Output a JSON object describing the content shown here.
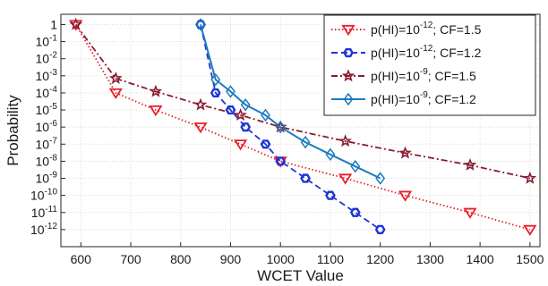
{
  "chart_data": {
    "type": "line",
    "title": "",
    "xlabel": "WCET Value",
    "ylabel": "Probability",
    "xlim": [
      560,
      1520
    ],
    "ylim_exponent": [
      -13,
      0.6
    ],
    "y_scale": "log",
    "x_ticks": [
      600,
      700,
      800,
      900,
      1000,
      1100,
      1200,
      1300,
      1400,
      1500
    ],
    "y_ticks": [
      {
        "exp": 0,
        "text": "1"
      },
      {
        "exp": -1,
        "text": "10",
        "sup": "-1"
      },
      {
        "exp": -2,
        "text": "10",
        "sup": "-2"
      },
      {
        "exp": -3,
        "text": "10",
        "sup": "-3"
      },
      {
        "exp": -4,
        "text": "10",
        "sup": "-4"
      },
      {
        "exp": -5,
        "text": "10",
        "sup": "-5"
      },
      {
        "exp": -6,
        "text": "10",
        "sup": "-6"
      },
      {
        "exp": -7,
        "text": "10",
        "sup": "-7"
      },
      {
        "exp": -8,
        "text": "10",
        "sup": "-8"
      },
      {
        "exp": -9,
        "text": "10",
        "sup": "-9"
      },
      {
        "exp": -10,
        "text": "10",
        "sup": "-10"
      },
      {
        "exp": -11,
        "text": "10",
        "sup": "-11"
      },
      {
        "exp": -12,
        "text": "10",
        "sup": "-12"
      }
    ],
    "grid": true,
    "legend_position": "top-right",
    "series": [
      {
        "name_prefix": "p(HI)=10",
        "name_sup": "-12",
        "name_suffix": "; CF=1.5",
        "color": "#e8202a",
        "dash": "dotted",
        "marker": "triangle-down",
        "points": [
          [
            590,
            1
          ],
          [
            670,
            0.0001
          ],
          [
            750,
            1e-05
          ],
          [
            840,
            1e-06
          ],
          [
            920,
            1e-07
          ],
          [
            1000,
            1e-08
          ],
          [
            1130,
            1e-09
          ],
          [
            1250,
            1e-10
          ],
          [
            1380,
            1e-11
          ],
          [
            1500,
            1e-12
          ]
        ]
      },
      {
        "name_prefix": "p(HI)=10",
        "name_sup": "-12",
        "name_suffix": "; CF=1.2",
        "color": "#1f35d6",
        "dash": "dashed",
        "marker": "hexagon",
        "points": [
          [
            840,
            1
          ],
          [
            870,
            0.0001
          ],
          [
            900,
            1e-05
          ],
          [
            930,
            1e-06
          ],
          [
            970,
            1e-07
          ],
          [
            1000,
            1e-08
          ],
          [
            1050,
            1e-09
          ],
          [
            1100,
            1e-10
          ],
          [
            1150,
            1e-11
          ],
          [
            1200,
            1e-12
          ]
        ]
      },
      {
        "name_prefix": "p(HI)=10",
        "name_sup": "-9",
        "name_suffix": "; CF=1.5",
        "color": "#8a1c33",
        "dash": "dashdot",
        "marker": "star",
        "points": [
          [
            590,
            1
          ],
          [
            670,
            0.0007
          ],
          [
            750,
            0.00012
          ],
          [
            840,
            2e-05
          ],
          [
            920,
            5e-06
          ],
          [
            1000,
            1e-06
          ],
          [
            1130,
            1.5e-07
          ],
          [
            1250,
            3e-08
          ],
          [
            1380,
            6e-09
          ],
          [
            1500,
            1e-09
          ]
        ]
      },
      {
        "name_prefix": "p(HI)=10",
        "name_sup": "-9",
        "name_suffix": "; CF=1.2",
        "color": "#1b7bbf",
        "dash": "solid",
        "marker": "diamond",
        "points": [
          [
            840,
            1
          ],
          [
            870,
            0.0006
          ],
          [
            900,
            0.00012
          ],
          [
            930,
            2e-05
          ],
          [
            970,
            5e-06
          ],
          [
            1000,
            1e-06
          ],
          [
            1050,
            1.3e-07
          ],
          [
            1100,
            2.5e-08
          ],
          [
            1150,
            5e-09
          ],
          [
            1200,
            1e-09
          ]
        ]
      }
    ]
  }
}
